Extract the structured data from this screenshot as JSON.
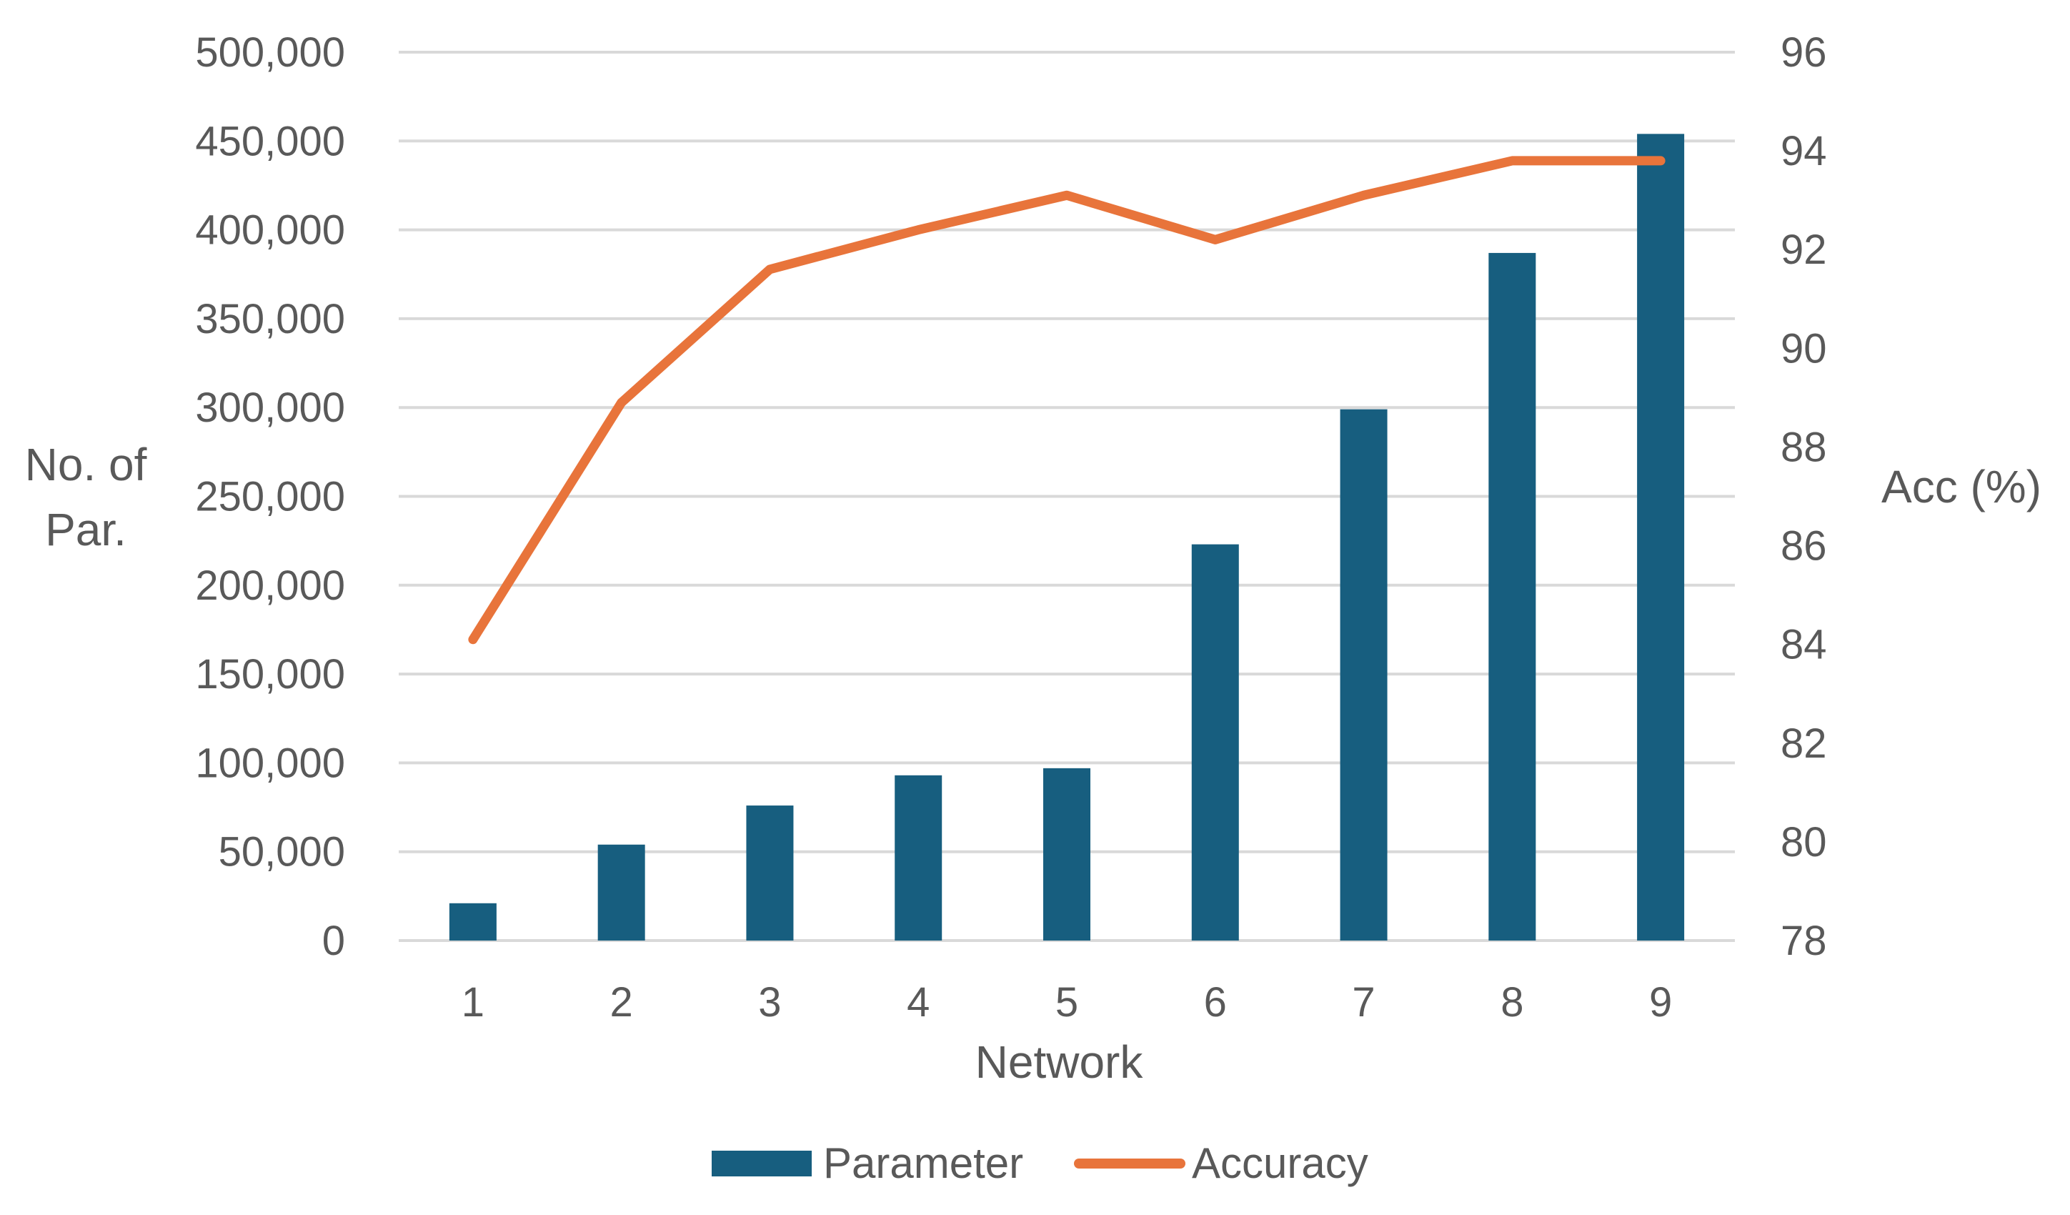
{
  "chart_data": {
    "type": "bar",
    "title": "",
    "categories": [
      "1",
      "2",
      "3",
      "4",
      "5",
      "6",
      "7",
      "8",
      "9"
    ],
    "xlabel": "Network",
    "ylabel_left": [
      "No. of",
      "Par."
    ],
    "ylabel_right": "Acc (%)",
    "y_left": {
      "min": 0,
      "max": 500000,
      "ticks": [
        0,
        50000,
        100000,
        150000,
        200000,
        250000,
        300000,
        350000,
        400000,
        450000,
        500000
      ],
      "tick_labels": [
        "0",
        "50,000",
        "100,000",
        "150,000",
        "200,000",
        "250,000",
        "300,000",
        "350,000",
        "400,000",
        "450,000",
        "500,000"
      ]
    },
    "y_right": {
      "min": 78,
      "max": 96,
      "ticks": [
        78,
        80,
        82,
        84,
        86,
        88,
        90,
        92,
        94,
        96
      ],
      "tick_labels": [
        "78",
        "80",
        "82",
        "84",
        "86",
        "88",
        "90",
        "92",
        "94",
        "96"
      ]
    },
    "grid": true,
    "legend_position": "bottom-center",
    "series": [
      {
        "name": "Parameter",
        "type": "bar",
        "axis": "left",
        "color": "#175e7f",
        "values": [
          21000,
          54000,
          76000,
          93000,
          97000,
          223000,
          299000,
          387000,
          454000
        ]
      },
      {
        "name": "Accuracy",
        "type": "line",
        "axis": "right",
        "color": "#e8743b",
        "values": [
          84.1,
          88.9,
          91.6,
          92.4,
          93.1,
          92.2,
          93.1,
          93.8,
          93.8
        ]
      }
    ]
  }
}
